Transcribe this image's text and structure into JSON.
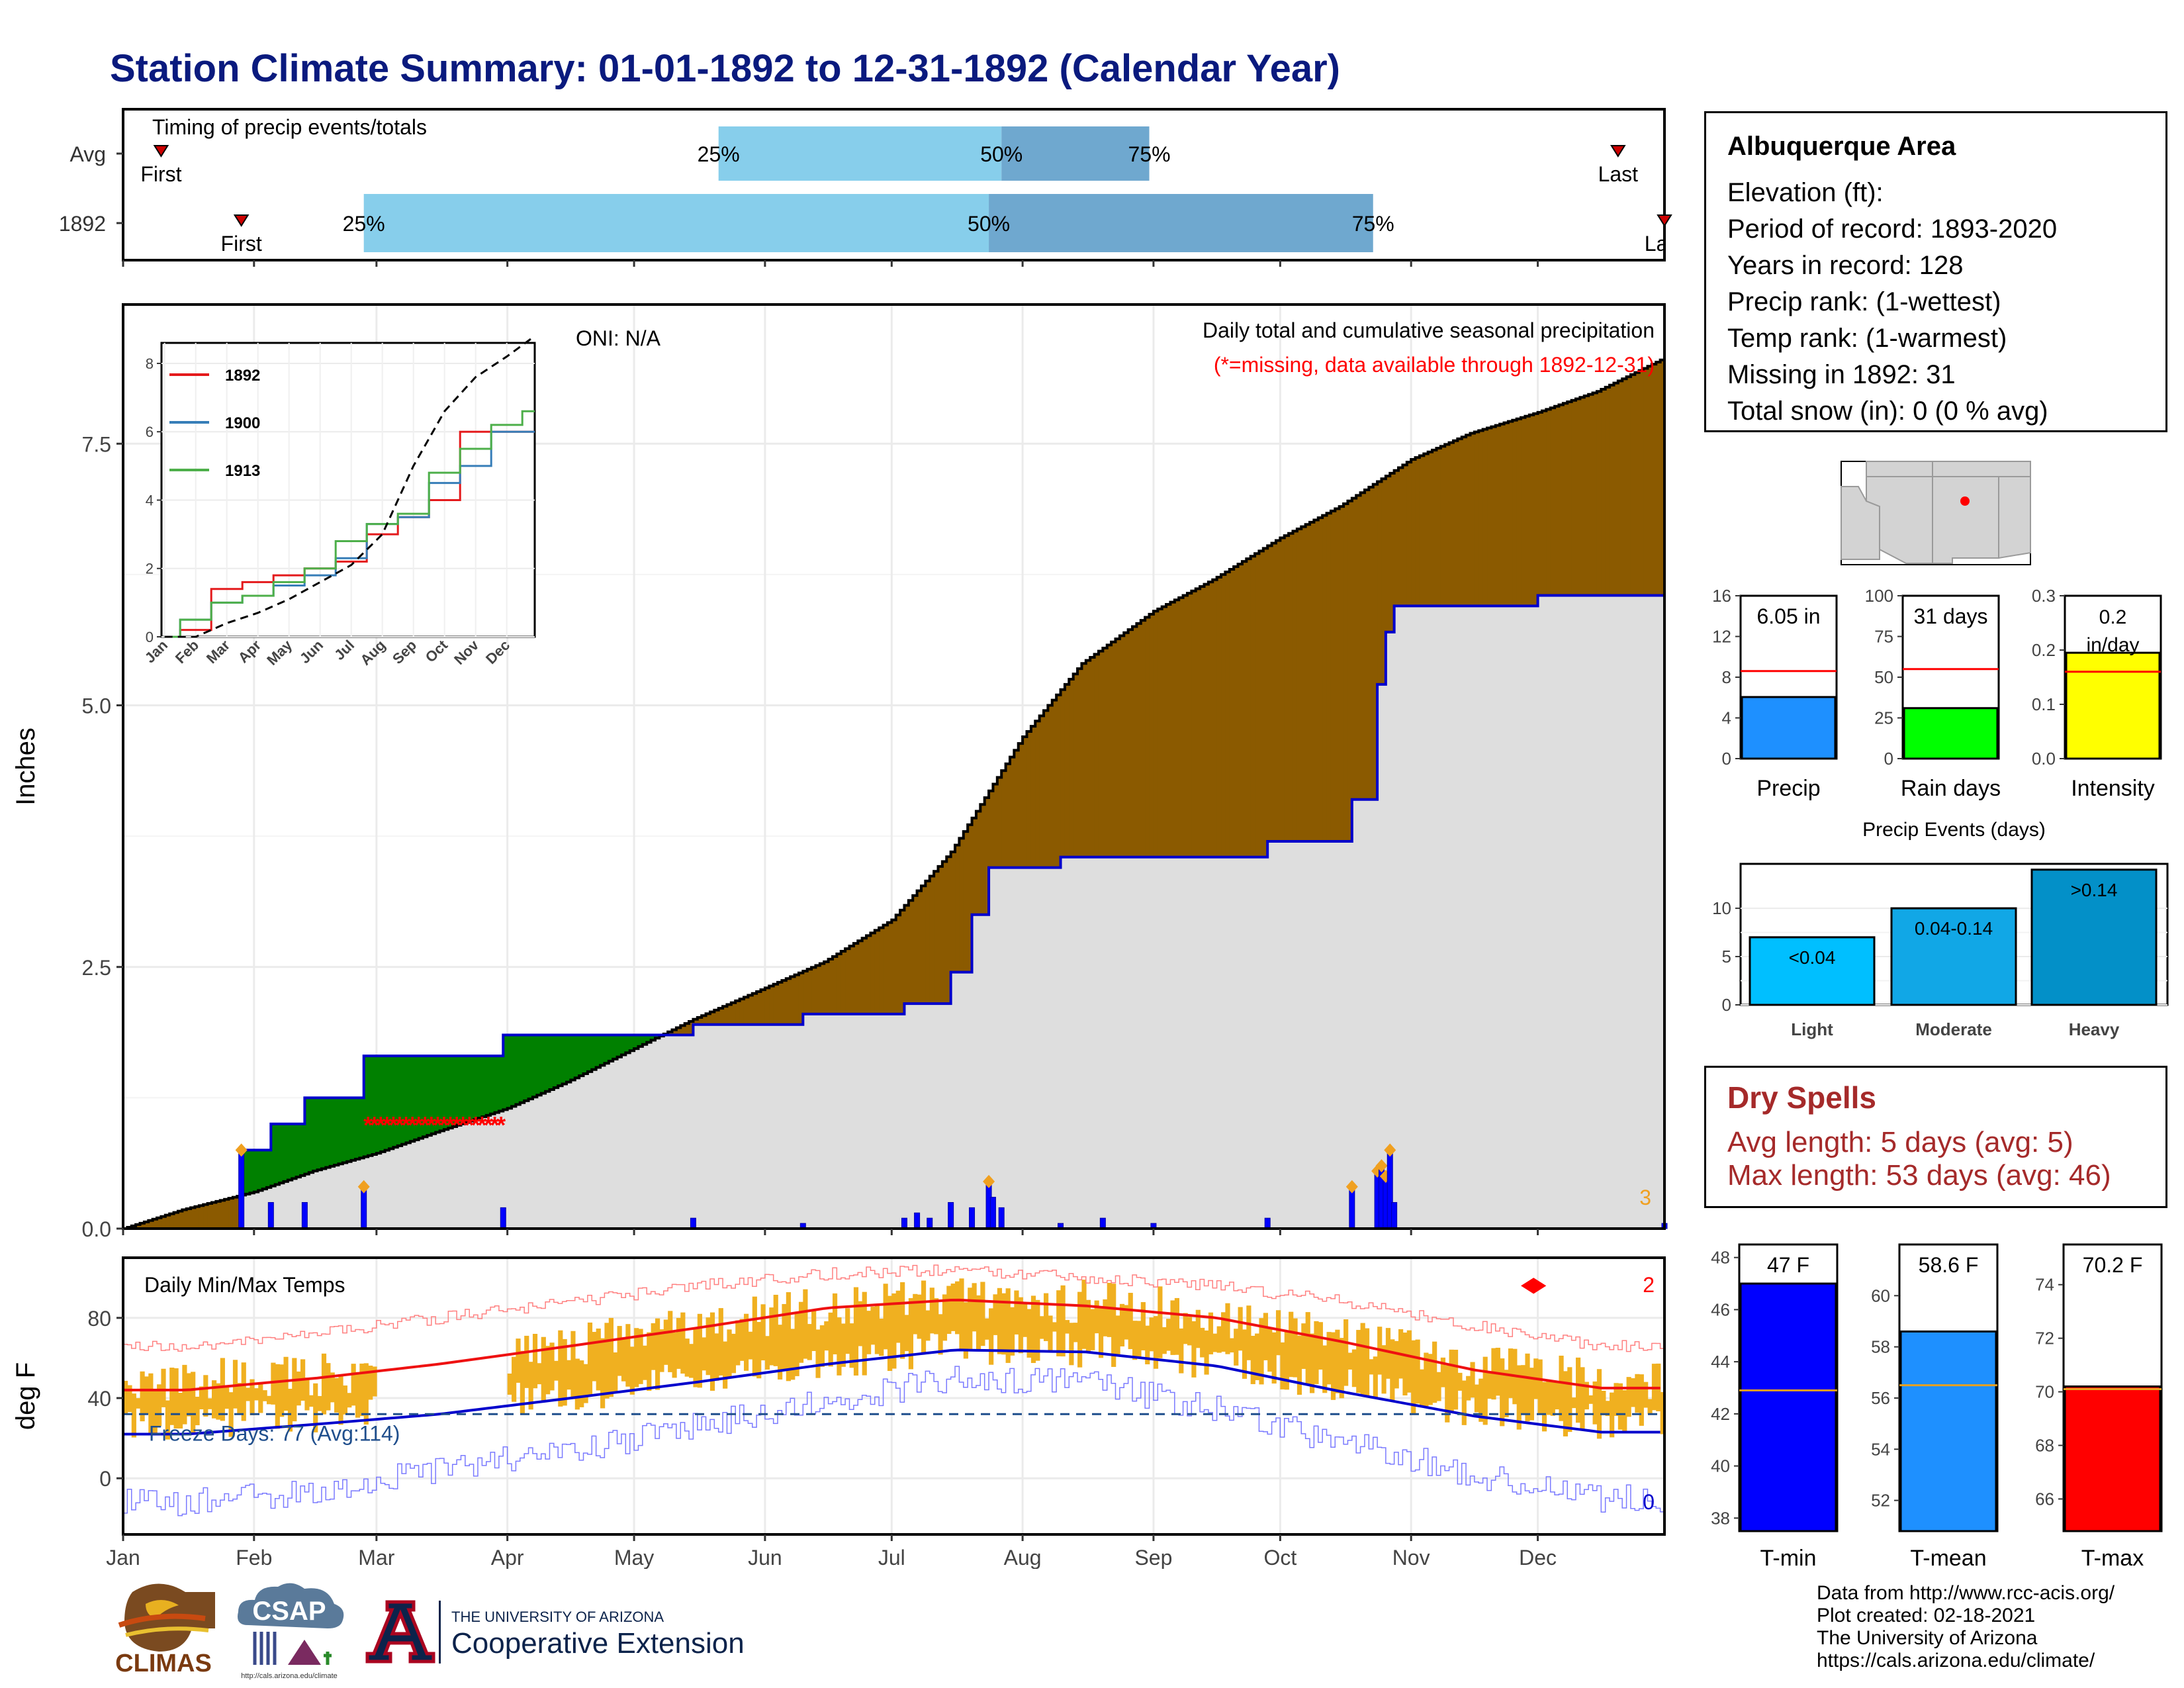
{
  "title": "Station Climate Summary: 01-01-1892 to 12-31-1892 (Calendar Year)",
  "colors": {
    "title": "#0a1a7e",
    "precip_above_normal": "#008000",
    "precip_below_normal": "#8b5a00",
    "normal_fill": "#dedede",
    "observed_line": "#0000cc",
    "daily_bars": "#0000ff",
    "temp_bars": "#f0b020",
    "normal_max": "#ee1111",
    "normal_min": "#0000cc",
    "timing_light": "#87ceeb",
    "timing_dark": "#6fa8cf",
    "dry_spells": "#a52a2a"
  },
  "timing": {
    "label": "Timing of precip events/totals",
    "rows": [
      {
        "label": "Avg",
        "first": "First",
        "last": "Last",
        "p25": "25%",
        "p50": "50%",
        "p75": "75%",
        "first_date": "1892-01-10",
        "p25_date": "1892-05-21",
        "p50_date": "1892-07-27",
        "p75_date": "1892-08-31",
        "last_date": "1892-12-20"
      },
      {
        "label": "1892",
        "first": "First",
        "last": "Last",
        "p25": "25%",
        "p50": "50%",
        "p75": "75%",
        "first_date": "1892-01-29",
        "p25_date": "1892-02-27",
        "p50_date": "1892-07-24",
        "p75_date": "1892-10-23",
        "last_date": "1892-12-31"
      }
    ]
  },
  "precip": {
    "y_title": "Inches",
    "y_ticks": [
      "0.0",
      "2.5",
      "5.0",
      "7.5"
    ],
    "oni": "ONI: N/A",
    "header": "Daily total and cumulative seasonal precipitation",
    "missing_note": "(*=missing, data available through 1892-12-31)",
    "corner_count": "3"
  },
  "inset": {
    "y_ticks": [
      "0",
      "2",
      "4",
      "6",
      "8"
    ],
    "legend": [
      {
        "name": "1892",
        "color": "#e41a1c"
      },
      {
        "name": "1900",
        "color": "#377eb8"
      },
      {
        "name": "1913",
        "color": "#4daf4a"
      }
    ]
  },
  "temps": {
    "label": "Daily Min/Max Temps",
    "y_title": "deg F",
    "y_ticks": [
      "0",
      "40",
      "80"
    ],
    "freeze": "Freeze Days: 77 (Avg:114)",
    "corner_max_count": "2",
    "corner_min_count": "0"
  },
  "months": [
    "Jan",
    "Feb",
    "Mar",
    "Apr",
    "May",
    "Jun",
    "Jul",
    "Aug",
    "Sep",
    "Oct",
    "Nov",
    "Dec"
  ],
  "info": {
    "station": "Albuquerque Area",
    "elevation": "Elevation (ft):",
    "period": "Period of record: 1893-2020",
    "years": "Years in record: 128",
    "precip_rank": "Precip rank:  (1-wettest)",
    "temp_rank": "Temp rank:  (1-warmest)",
    "missing": "Missing in 1892: 31",
    "snow": "Total snow (in): 0 (0 % avg)"
  },
  "summary_bars": [
    {
      "label": "Precip",
      "value_text": "6.05 in",
      "value": 6.05,
      "normal": 8.6,
      "ylim": [
        0,
        16
      ],
      "ticks": [
        "0",
        "4",
        "8",
        "12",
        "16"
      ],
      "color": "#1e90ff"
    },
    {
      "label": "Rain days",
      "value_text": "31 days",
      "value": 31,
      "normal": 55,
      "ylim": [
        0,
        100
      ],
      "ticks": [
        "0",
        "25",
        "50",
        "75",
        "100"
      ],
      "color": "#00ff00"
    },
    {
      "label": "Intensity",
      "value_text": "0.2 in/day",
      "value": 0.195,
      "normal": 0.16,
      "ylim": [
        0,
        0.3
      ],
      "ticks": [
        "0.0",
        "0.1",
        "0.2",
        "0.3"
      ],
      "color": "#ffff00"
    }
  ],
  "events": {
    "title": "Precip Events (days)",
    "ticks": [
      "0",
      "5",
      "10"
    ],
    "bars": [
      {
        "label": "Light",
        "text": "<0.04",
        "value": 7,
        "color": "#00bfff"
      },
      {
        "label": "Moderate",
        "text": "0.04-0.14",
        "value": 10,
        "color": "#11a7e6"
      },
      {
        "label": "Heavy",
        "text": ">0.14",
        "value": 14,
        "color": "#0390c8"
      }
    ]
  },
  "dry_spells": {
    "title": "Dry Spells",
    "avg": "Avg length: 5 days (avg: 5)",
    "max": "Max length: 53 days (avg: 46)"
  },
  "temp_bars": [
    {
      "label": "T-min",
      "value_text": "47 F",
      "value": 47,
      "normal": 42.9,
      "ylim": [
        37.5,
        48.5
      ],
      "ticks": [
        "38",
        "40",
        "42",
        "44",
        "46",
        "48"
      ],
      "color": "#0000ff"
    },
    {
      "label": "T-mean",
      "value_text": "58.6 F",
      "value": 58.6,
      "normal": 56.5,
      "ylim": [
        50.8,
        62
      ],
      "ticks": [
        "52",
        "54",
        "56",
        "58",
        "60"
      ],
      "color": "#1e90ff"
    },
    {
      "label": "T-max",
      "value_text": "70.2 F",
      "value": 70.2,
      "normal": 70.1,
      "ylim": [
        64.8,
        75.5
      ],
      "ticks": [
        "66",
        "68",
        "70",
        "72",
        "74"
      ],
      "color": "#ff0000"
    }
  ],
  "credits": [
    "Data from http://www.rcc-acis.org/",
    "Plot created: 02-18-2021",
    "The University of Arizona",
    "https://cals.arizona.edu/climate/"
  ],
  "logos": {
    "climas": "CLIMAS",
    "csap": "CSAP",
    "csap_url": "http://cals.arizona.edu/climate",
    "ua_small": "THE UNIVERSITY OF ARIZONA",
    "ua_big": "Cooperative Extension"
  },
  "chart_data": [
    {
      "type": "area",
      "title": "Daily total and cumulative seasonal precipitation",
      "ylabel": "Inches",
      "xlabel": "",
      "xlim": [
        "1892-01-01",
        "1892-12-31"
      ],
      "ylim": [
        0,
        8.4
      ],
      "normal_cumulative": {
        "x": [
          "1892-01-01",
          "1892-01-15",
          "1892-02-01",
          "1892-02-15",
          "1892-03-01",
          "1892-03-15",
          "1892-04-01",
          "1892-04-15",
          "1892-05-01",
          "1892-05-15",
          "1892-06-01",
          "1892-06-15",
          "1892-07-01",
          "1892-07-15",
          "1892-08-01",
          "1892-08-15",
          "1892-09-01",
          "1892-09-15",
          "1892-10-01",
          "1892-10-15",
          "1892-11-01",
          "1892-11-15",
          "1892-12-01",
          "1892-12-15",
          "1892-12-31"
        ],
        "y": [
          0.0,
          0.18,
          0.35,
          0.55,
          0.72,
          0.92,
          1.15,
          1.4,
          1.72,
          2.0,
          2.3,
          2.55,
          2.95,
          3.6,
          4.7,
          5.4,
          5.9,
          6.2,
          6.6,
          6.9,
          7.35,
          7.6,
          7.8,
          8.0,
          8.32
        ]
      },
      "observed_cumulative": {
        "x": [
          "1892-01-01",
          "1892-01-29",
          "1892-01-29",
          "1892-02-05",
          "1892-02-05",
          "1892-02-13",
          "1892-02-13",
          "1892-02-27",
          "1892-02-27",
          "1892-03-31",
          "1892-03-31",
          "1892-05-15",
          "1892-05-15",
          "1892-06-10",
          "1892-06-10",
          "1892-07-04",
          "1892-07-04",
          "1892-07-15",
          "1892-07-15",
          "1892-07-20",
          "1892-07-20",
          "1892-07-24",
          "1892-07-24",
          "1892-08-10",
          "1892-08-10",
          "1892-09-28",
          "1892-09-28",
          "1892-10-18",
          "1892-10-18",
          "1892-10-24",
          "1892-10-24",
          "1892-10-26",
          "1892-10-26",
          "1892-10-28",
          "1892-10-28",
          "1892-12-01",
          "1892-12-01",
          "1892-12-31"
        ],
        "y": [
          0.0,
          0.0,
          0.75,
          0.75,
          1.0,
          1.0,
          1.25,
          1.25,
          1.65,
          1.65,
          1.85,
          1.85,
          1.95,
          1.95,
          2.05,
          2.05,
          2.15,
          2.15,
          2.45,
          2.45,
          3.0,
          3.0,
          3.45,
          3.45,
          3.55,
          3.55,
          3.7,
          3.7,
          4.1,
          4.1,
          5.2,
          5.2,
          5.7,
          5.7,
          5.95,
          5.95,
          6.05,
          6.05
        ]
      },
      "daily_totals": {
        "x": [
          "1892-01-29",
          "1892-02-05",
          "1892-02-13",
          "1892-02-27",
          "1892-03-31",
          "1892-05-15",
          "1892-06-10",
          "1892-07-04",
          "1892-07-07",
          "1892-07-10",
          "1892-07-15",
          "1892-07-20",
          "1892-07-24",
          "1892-07-25",
          "1892-07-27",
          "1892-08-10",
          "1892-08-20",
          "1892-09-01",
          "1892-09-28",
          "1892-10-18",
          "1892-10-24",
          "1892-10-25",
          "1892-10-26",
          "1892-10-27",
          "1892-10-28",
          "1892-12-31"
        ],
        "y": [
          0.75,
          0.25,
          0.25,
          0.4,
          0.2,
          0.1,
          0.05,
          0.1,
          0.15,
          0.1,
          0.25,
          0.2,
          0.45,
          0.3,
          0.2,
          0.05,
          0.1,
          0.05,
          0.1,
          0.4,
          0.55,
          0.6,
          0.5,
          0.75,
          0.25,
          0.05
        ]
      },
      "missing_range": [
        "1892-02-28",
        "1892-03-31"
      ]
    },
    {
      "type": "line",
      "title": "",
      "x": [
        "Jan",
        "Feb",
        "Mar",
        "Apr",
        "May",
        "Jun",
        "Jul",
        "Aug",
        "Sep",
        "Oct",
        "Nov",
        "Dec"
      ],
      "ylim": [
        0,
        9
      ],
      "series": [
        {
          "name": "1892",
          "values": [
            0.2,
            1.4,
            1.6,
            1.8,
            2.0,
            2.2,
            3.0,
            3.5,
            4.0,
            6.0,
            6.0,
            6.0
          ]
        },
        {
          "name": "1900",
          "values": [
            0.5,
            1.0,
            1.2,
            1.5,
            1.8,
            2.3,
            3.3,
            3.5,
            4.5,
            5.0,
            6.0,
            6.0
          ]
        },
        {
          "name": "1913",
          "values": [
            0.5,
            1.0,
            1.2,
            1.6,
            2.0,
            2.8,
            3.3,
            3.6,
            4.8,
            5.5,
            6.2,
            6.6
          ]
        },
        {
          "values": [
            0.0,
            0.4,
            0.7,
            1.1,
            1.6,
            2.1,
            3.0,
            5.0,
            6.6,
            7.6,
            8.2,
            8.8
          ]
        }
      ]
    },
    {
      "type": "bar",
      "title": "Daily Min/Max Temps",
      "ylabel": "deg F",
      "ylim": [
        -30,
        110
      ],
      "months": [
        "Jan",
        "Feb",
        "Mar",
        "Apr",
        "May",
        "Jun",
        "Jul",
        "Aug",
        "Sep",
        "Oct",
        "Nov",
        "Dec"
      ],
      "monthly_min": [
        28,
        32,
        38,
        42,
        50,
        58,
        66,
        64,
        58,
        46,
        34,
        28
      ],
      "monthly_max": [
        48,
        52,
        58,
        66,
        76,
        86,
        90,
        88,
        82,
        70,
        56,
        48
      ],
      "normal_max": [
        44,
        50,
        57,
        66,
        75,
        85,
        89,
        86,
        80,
        68,
        54,
        45
      ],
      "normal_min": [
        22,
        27,
        32,
        40,
        48,
        57,
        64,
        63,
        56,
        43,
        31,
        23
      ],
      "record_max": [
        66,
        72,
        80,
        88,
        96,
        102,
        104,
        100,
        96,
        88,
        76,
        66
      ],
      "record_min": [
        -12,
        -6,
        4,
        14,
        26,
        38,
        50,
        48,
        34,
        18,
        2,
        -10
      ],
      "freeze_line": 32,
      "missing_range": [
        "1892-03-01",
        "1892-04-01"
      ]
    }
  ]
}
